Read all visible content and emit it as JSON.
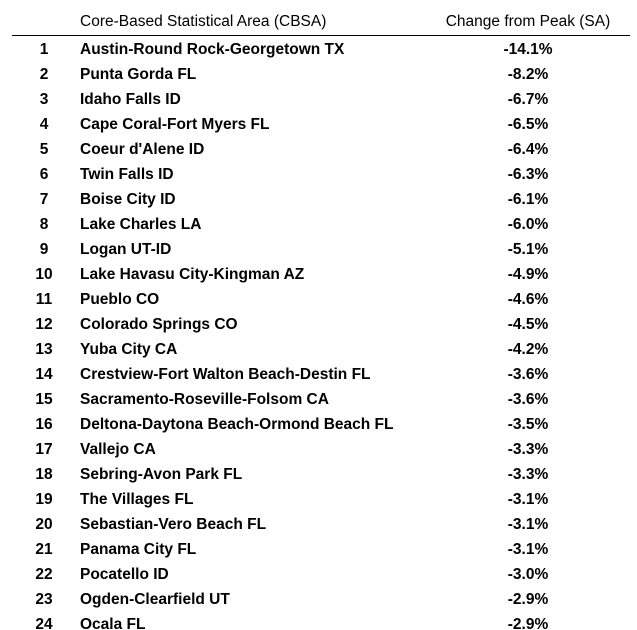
{
  "table": {
    "header": [
      "Core-Based Statistical Area (CBSA)",
      "Change from Peak (SA)"
    ],
    "rows": [
      [
        "1",
        "Austin-Round Rock-Georgetown TX",
        "-14.1%"
      ],
      [
        "2",
        "Punta Gorda FL",
        "-8.2%"
      ],
      [
        "3",
        "Idaho Falls ID",
        "-6.7%"
      ],
      [
        "4",
        "Cape Coral-Fort Myers FL",
        "-6.5%"
      ],
      [
        "5",
        "Coeur d'Alene ID",
        "-6.4%"
      ],
      [
        "6",
        "Twin Falls ID",
        "-6.3%"
      ],
      [
        "7",
        "Boise City ID",
        "-6.1%"
      ],
      [
        "8",
        "Lake Charles LA",
        "-6.0%"
      ],
      [
        "9",
        "Logan UT-ID",
        "-5.1%"
      ],
      [
        "10",
        "Lake Havasu City-Kingman AZ",
        "-4.9%"
      ],
      [
        "11",
        "Pueblo CO",
        "-4.6%"
      ],
      [
        "12",
        "Colorado Springs CO",
        "-4.5%"
      ],
      [
        "13",
        "Yuba City CA",
        "-4.2%"
      ],
      [
        "14",
        "Crestview-Fort Walton Beach-Destin FL",
        "-3.6%"
      ],
      [
        "15",
        "Sacramento-Roseville-Folsom CA",
        "-3.6%"
      ],
      [
        "16",
        "Deltona-Daytona Beach-Ormond Beach FL",
        "-3.5%"
      ],
      [
        "17",
        "Vallejo CA",
        "-3.3%"
      ],
      [
        "18",
        "Sebring-Avon Park FL",
        "-3.3%"
      ],
      [
        "19",
        "The Villages FL",
        "-3.1%"
      ],
      [
        "20",
        "Sebastian-Vero Beach FL",
        "-3.1%"
      ],
      [
        "21",
        "Panama City FL",
        "-3.1%"
      ],
      [
        "22",
        "Pocatello ID",
        "-3.0%"
      ],
      [
        "23",
        "Ogden-Clearfield UT",
        "-2.9%"
      ],
      [
        "24",
        "Ocala FL",
        "-2.9%"
      ]
    ]
  }
}
